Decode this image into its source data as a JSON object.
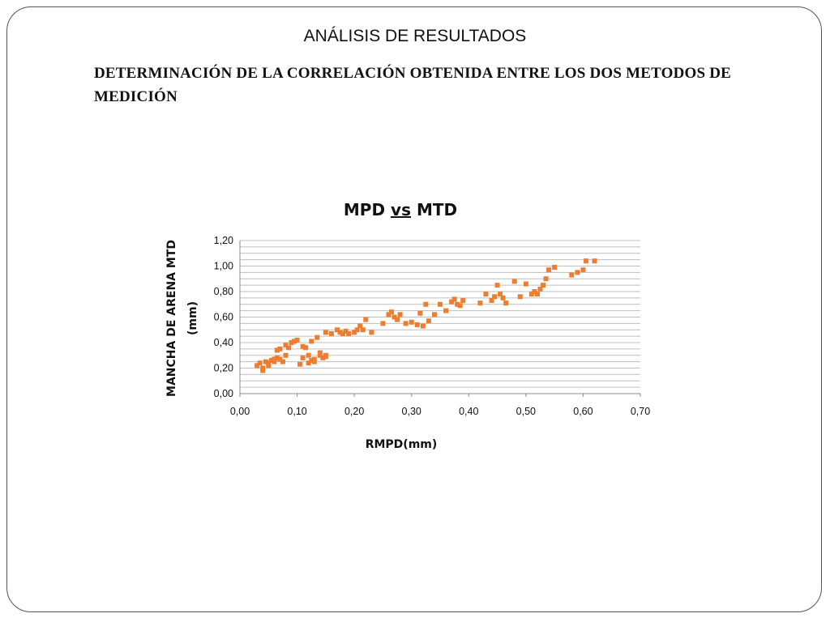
{
  "slide": {
    "title": "ANÁLISIS DE RESULTADOS",
    "subtitle": "DETERMINACIÓN DE LA CORRELACIÓN OBTENIDA ENTRE LOS DOS METODOS DE MEDICIÓN"
  },
  "colors": {
    "marker": "#ED7D31",
    "grid": "#BFBFBF",
    "axis": "#8C8C8C"
  },
  "chart_data": {
    "type": "scatter",
    "title": "MPD vs MTD",
    "title_parts": [
      "MPD ",
      "vs",
      " MTD"
    ],
    "xlabel": "RMPD(mm)",
    "ylabel_lines": [
      "MANCHA DE ARENA MTD",
      "(mm)"
    ],
    "xlim": [
      0,
      0.7
    ],
    "ylim": [
      0,
      1.2
    ],
    "xticks": [
      "0,00",
      "0,10",
      "0,20",
      "0,30",
      "0,40",
      "0,50",
      "0,60",
      "0,70"
    ],
    "yticks": [
      "0,00",
      "0,20",
      "0,40",
      "0,60",
      "0,80",
      "1,00",
      "1,20"
    ],
    "grid": true,
    "legend": "none",
    "series": [
      {
        "x": [
          0.03,
          0.035,
          0.04,
          0.045,
          0.05,
          0.055,
          0.06,
          0.065,
          0.07,
          0.075,
          0.04,
          0.05,
          0.06,
          0.065,
          0.07,
          0.08,
          0.08,
          0.085,
          0.09,
          0.095,
          0.1,
          0.105,
          0.11,
          0.115,
          0.12,
          0.125,
          0.11,
          0.12,
          0.125,
          0.13,
          0.135,
          0.14,
          0.145,
          0.15,
          0.13,
          0.14,
          0.15,
          0.15,
          0.16,
          0.17,
          0.175,
          0.18,
          0.185,
          0.19,
          0.2,
          0.205,
          0.21,
          0.215,
          0.22,
          0.23,
          0.25,
          0.26,
          0.265,
          0.27,
          0.275,
          0.28,
          0.29,
          0.3,
          0.31,
          0.315,
          0.32,
          0.325,
          0.33,
          0.34,
          0.35,
          0.36,
          0.37,
          0.375,
          0.38,
          0.385,
          0.39,
          0.42,
          0.43,
          0.44,
          0.445,
          0.45,
          0.455,
          0.46,
          0.465,
          0.48,
          0.49,
          0.5,
          0.51,
          0.515,
          0.52,
          0.525,
          0.53,
          0.535,
          0.54,
          0.55,
          0.58,
          0.59,
          0.6,
          0.605,
          0.62
        ],
        "y": [
          0.22,
          0.24,
          0.2,
          0.25,
          0.22,
          0.26,
          0.25,
          0.28,
          0.27,
          0.25,
          0.18,
          0.24,
          0.27,
          0.34,
          0.35,
          0.3,
          0.38,
          0.36,
          0.4,
          0.41,
          0.42,
          0.23,
          0.37,
          0.36,
          0.3,
          0.26,
          0.28,
          0.24,
          0.41,
          0.27,
          0.44,
          0.3,
          0.28,
          0.29,
          0.25,
          0.32,
          0.3,
          0.48,
          0.47,
          0.5,
          0.48,
          0.47,
          0.49,
          0.47,
          0.48,
          0.5,
          0.53,
          0.5,
          0.58,
          0.48,
          0.55,
          0.62,
          0.64,
          0.6,
          0.58,
          0.62,
          0.55,
          0.56,
          0.54,
          0.63,
          0.53,
          0.7,
          0.57,
          0.62,
          0.7,
          0.65,
          0.72,
          0.74,
          0.7,
          0.69,
          0.73,
          0.71,
          0.78,
          0.73,
          0.76,
          0.85,
          0.78,
          0.75,
          0.71,
          0.88,
          0.76,
          0.86,
          0.78,
          0.8,
          0.78,
          0.82,
          0.85,
          0.9,
          0.97,
          0.99,
          0.93,
          0.95,
          0.97,
          1.04,
          1.04
        ]
      }
    ]
  }
}
